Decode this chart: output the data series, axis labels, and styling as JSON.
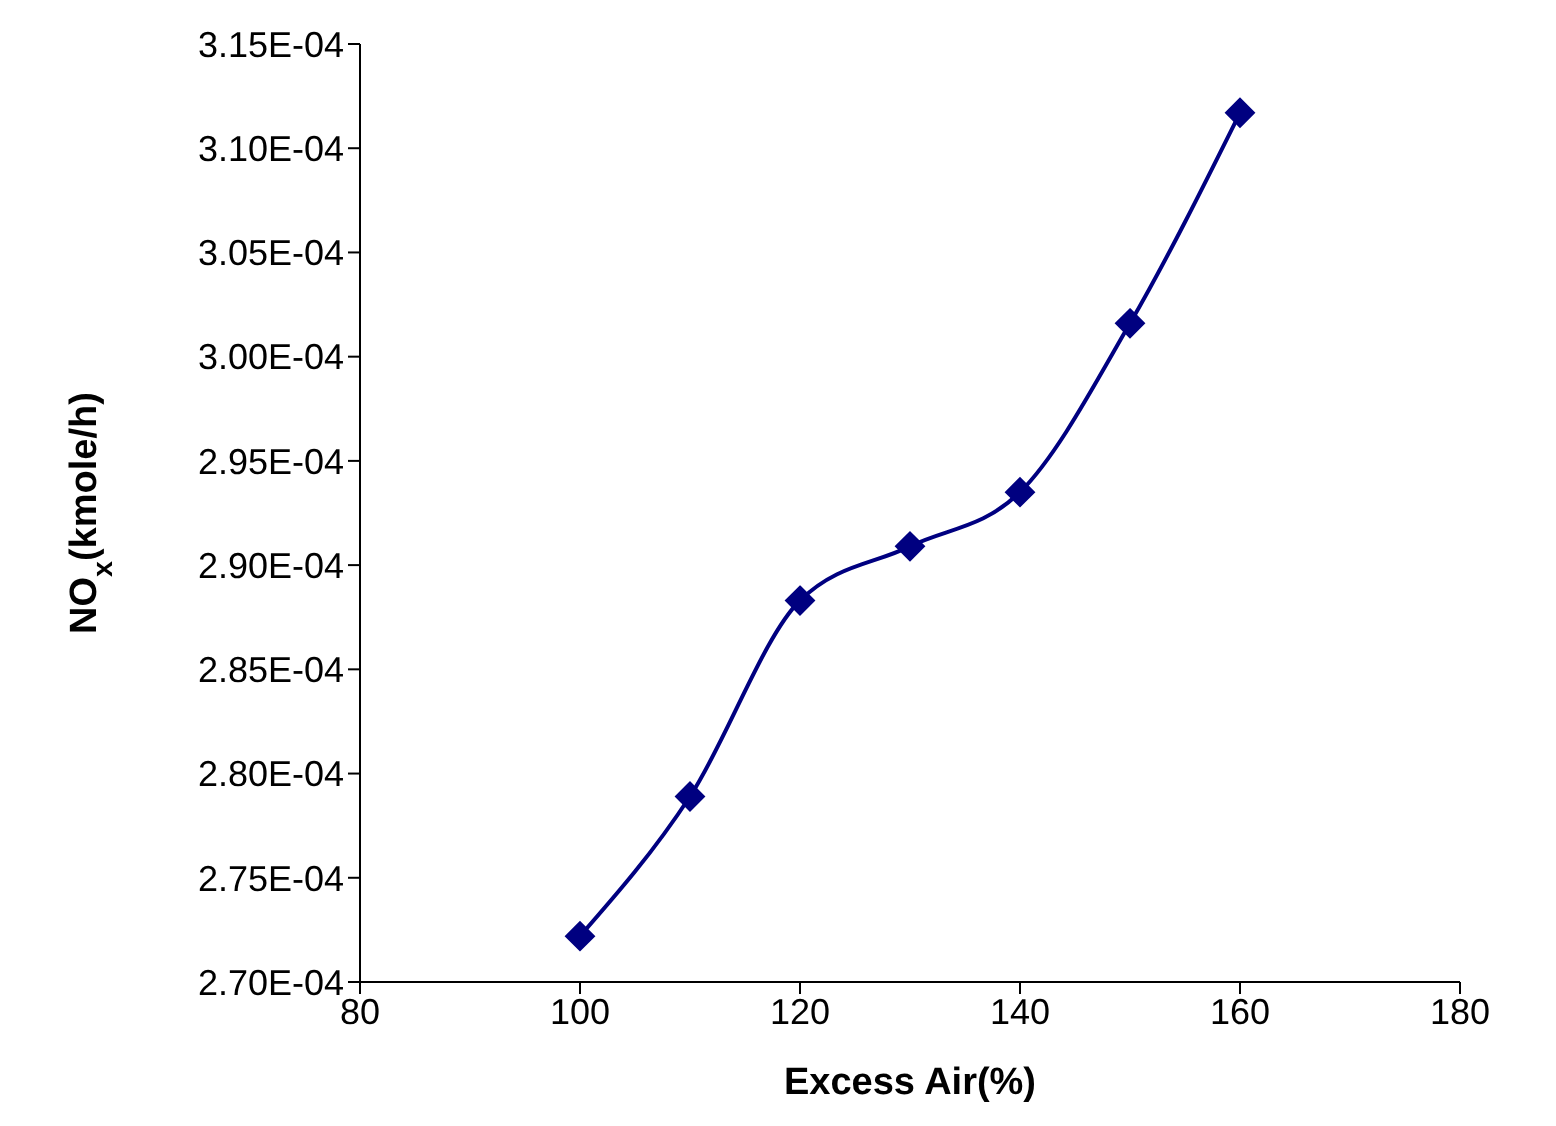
{
  "chart_data": {
    "type": "line",
    "xlabel": "Excess Air(%)",
    "ylabel": "NO$_{x}$(kmole/h)",
    "x": [
      100,
      110,
      120,
      130,
      140,
      150,
      160
    ],
    "series": [
      {
        "color": "#000080",
        "values": [
          0.0002722,
          0.0002789,
          0.0002883,
          0.0002909,
          0.0002935,
          0.0003016,
          0.0003117
        ]
      }
    ],
    "xlim": [
      80,
      180
    ],
    "xticks": [
      80,
      100,
      120,
      140,
      160,
      180
    ],
    "ylim": [
      0.00027,
      0.000315
    ],
    "yticks": [
      {
        "value": 0.00027,
        "label": "2.70E-04"
      },
      {
        "value": 0.000275,
        "label": "2.75E-04"
      },
      {
        "value": 0.00028,
        "label": "2.80E-04"
      },
      {
        "value": 0.000285,
        "label": "2.85E-04"
      },
      {
        "value": 0.00029,
        "label": "2.90E-04"
      },
      {
        "value": 0.000295,
        "label": "2.95E-04"
      },
      {
        "value": 0.0003,
        "label": "3.00E-04"
      },
      {
        "value": 0.000305,
        "label": "3.05E-04"
      },
      {
        "value": 0.00031,
        "label": "3.10E-04"
      },
      {
        "value": 0.000315,
        "label": "3.15E-04"
      }
    ],
    "grid": false,
    "legend": false,
    "marker": "diamond",
    "line_style": "solid"
  }
}
